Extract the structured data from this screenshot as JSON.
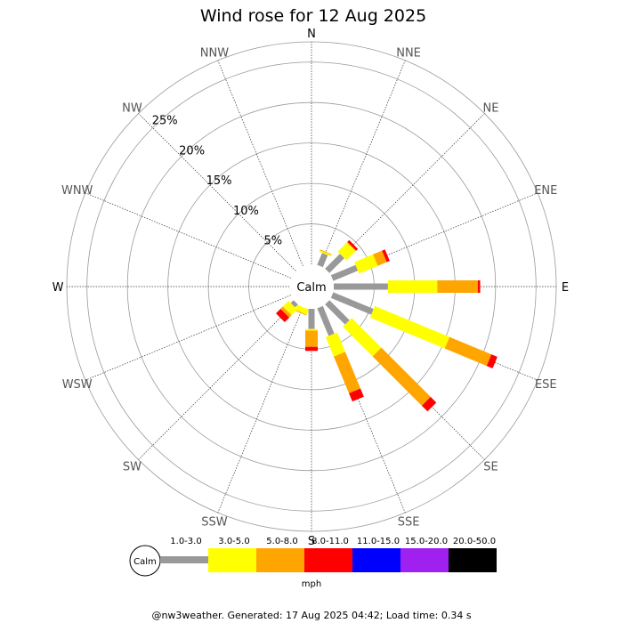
{
  "chart_data": {
    "type": "wind-rose",
    "title": "Wind rose for 12 Aug 2025",
    "calm_label": "Calm",
    "directions": [
      "N",
      "NNE",
      "NE",
      "ENE",
      "E",
      "ESE",
      "SE",
      "SSE",
      "S",
      "SSW",
      "SW",
      "WSW",
      "W",
      "WNW",
      "NW",
      "NNW"
    ],
    "ring_labels": [
      "5%",
      "10%",
      "15%",
      "20%",
      "25%"
    ],
    "r_max_percent": 27.5,
    "bins": [
      {
        "label": "1.0-3.0",
        "color": "#999999"
      },
      {
        "label": "3.0-5.0",
        "color": "#ffff00"
      },
      {
        "label": "5.0-8.0",
        "color": "#ffa500"
      },
      {
        "label": "8.0-11.0",
        "color": "#ff0000"
      },
      {
        "label": "11.0-15.0",
        "color": "#0000ff"
      },
      {
        "label": "15.0-20.0",
        "color": "#a020f0"
      },
      {
        "label": "20.0-50.0",
        "color": "#000000"
      }
    ],
    "speed_unit": "mph",
    "values": {
      "N": [
        0,
        0,
        0,
        0,
        0,
        0,
        0
      ],
      "NNE": [
        1.6,
        0.2,
        0.1,
        0,
        0,
        0,
        0
      ],
      "NE": [
        2.6,
        1.6,
        0.1,
        0.3,
        0,
        0,
        0
      ],
      "ENE": [
        3.3,
        2.5,
        1.2,
        0.4,
        0,
        0,
        0
      ],
      "E": [
        6.7,
        6.1,
        5.0,
        0.3,
        0,
        0,
        0
      ],
      "ESE": [
        5.4,
        10.0,
        5.6,
        0.8,
        0,
        0,
        0
      ],
      "SE": [
        3.5,
        5.2,
        8.6,
        1.0,
        0,
        0,
        0
      ],
      "SSE": [
        3.7,
        2.6,
        4.9,
        1.1,
        0,
        0,
        0
      ],
      "S": [
        2.5,
        0.2,
        2.0,
        0.5,
        0,
        0,
        0
      ],
      "SSW": [
        0,
        0.7,
        0.1,
        0,
        0,
        0,
        0
      ],
      "SW": [
        0.5,
        1.0,
        0.4,
        0.8,
        0,
        0,
        0
      ],
      "WSW": [
        0,
        0,
        0,
        0,
        0,
        0,
        0
      ],
      "W": [
        0,
        0,
        0,
        0,
        0,
        0,
        0
      ],
      "WNW": [
        0,
        0,
        0,
        0,
        0,
        0,
        0
      ],
      "NW": [
        0,
        0,
        0,
        0,
        0,
        0,
        0
      ],
      "NNW": [
        0,
        0,
        0,
        0,
        0,
        0,
        0
      ]
    }
  },
  "footer": "@nw3weather. Generated: 17 Aug 2025 04:42; Load time: 0.34 s"
}
